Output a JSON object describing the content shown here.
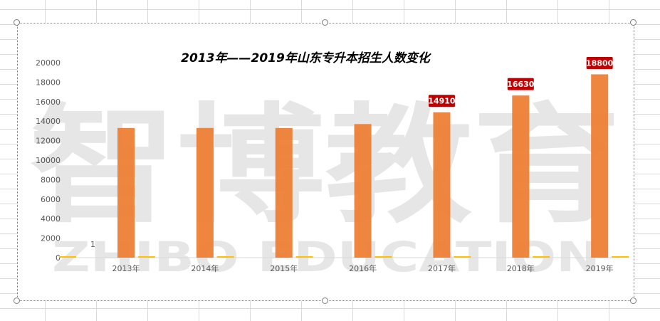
{
  "chart_data": {
    "type": "bar",
    "title": "2013年——2019年山东专升本招生人数变化",
    "categories": [
      "2013年",
      "2014年",
      "2015年",
      "2016年",
      "2017年",
      "2018年",
      "2019年"
    ],
    "series": [
      {
        "values": [
          13300,
          13300,
          13300,
          13700,
          14910,
          16630,
          18800
        ]
      }
    ],
    "small_label": "1",
    "data_labels": {
      "2017年": "14910",
      "2018年": "16630",
      "2019年": "18800"
    },
    "y_ticks": [
      0,
      2000,
      4000,
      6000,
      8000,
      10000,
      12000,
      14000,
      16000,
      18000,
      20000
    ],
    "ylim": [
      0,
      20000
    ],
    "grid": false,
    "legend": "none"
  },
  "watermark": {
    "cn": "智博教育",
    "en": "ZHIBO EDUCATION"
  },
  "colors": {
    "bar": "#ed7d31",
    "label_bg": "#c00000",
    "baseline_marker": "#ffc000",
    "axis": "#d9d9d9"
  }
}
